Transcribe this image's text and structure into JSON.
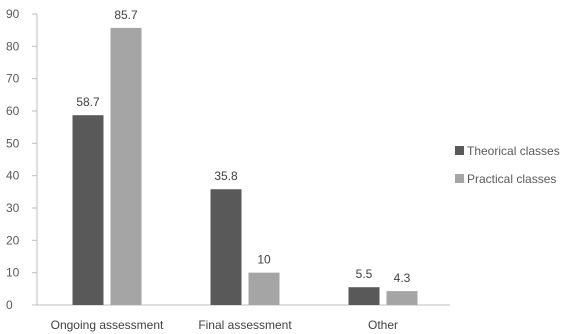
{
  "chart_data": {
    "type": "bar",
    "categories": [
      "Ongoing assessment",
      "Final assessment",
      "Other"
    ],
    "series": [
      {
        "name": "Theorical classes",
        "values": [
          58.7,
          35.8,
          5.5
        ],
        "color": "#595959"
      },
      {
        "name": "Practical classes",
        "values": [
          85.7,
          10,
          4.3
        ],
        "color": "#A5A5A5"
      }
    ],
    "data_labels": [
      [
        "58.7",
        "35.8",
        "5.5"
      ],
      [
        "85.7",
        "10",
        "4.3"
      ]
    ],
    "y_ticks": [
      "0",
      "10",
      "20",
      "30",
      "40",
      "50",
      "60",
      "70",
      "80",
      "90"
    ],
    "ylim": [
      0,
      90
    ],
    "title": "",
    "xlabel": "",
    "ylabel": "",
    "grid": false,
    "legend_position": "right"
  }
}
